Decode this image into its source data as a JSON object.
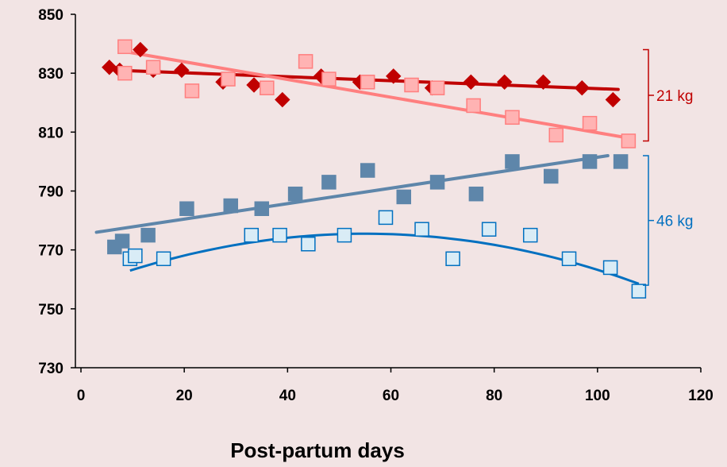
{
  "chart_data": {
    "type": "scatter",
    "title": "",
    "xlabel": "Post-partum days",
    "ylabel": "",
    "xlim": [
      0,
      120
    ],
    "ylim": [
      730,
      850
    ],
    "xticks": [
      0,
      20,
      40,
      60,
      80,
      100,
      120
    ],
    "yticks": [
      730,
      750,
      770,
      790,
      810,
      830,
      850
    ],
    "grid": false,
    "series": [
      {
        "marker": "diamond",
        "color": "#c00000",
        "fill": "#c00000",
        "points": [
          [
            5.5,
            832
          ],
          [
            7.5,
            831
          ],
          [
            11.5,
            838
          ],
          [
            14,
            831
          ],
          [
            19.5,
            831
          ],
          [
            27.5,
            827
          ],
          [
            33.5,
            826
          ],
          [
            39,
            821
          ],
          [
            46.5,
            829
          ],
          [
            54,
            827
          ],
          [
            60.5,
            829
          ],
          [
            68,
            825
          ],
          [
            75.5,
            827
          ],
          [
            82,
            827
          ],
          [
            89.5,
            827
          ],
          [
            97,
            825
          ],
          [
            103,
            821
          ]
        ],
        "trend": {
          "kind": "linear",
          "x": [
            7,
            104
          ],
          "y": [
            831,
            824.5
          ]
        }
      },
      {
        "marker": "square",
        "color": "#ff7f7f",
        "fill": "#ffb3b3",
        "points": [
          [
            8.5,
            839
          ],
          [
            8.5,
            830
          ],
          [
            14,
            832
          ],
          [
            21.5,
            824
          ],
          [
            28.5,
            828
          ],
          [
            36,
            825
          ],
          [
            43.5,
            834
          ],
          [
            48,
            828
          ],
          [
            55.5,
            827
          ],
          [
            64,
            826
          ],
          [
            69,
            825
          ],
          [
            76,
            819
          ],
          [
            83.5,
            815
          ],
          [
            92,
            809
          ],
          [
            98.5,
            813
          ],
          [
            106,
            807
          ]
        ],
        "trend": {
          "kind": "linear",
          "x": [
            8,
            106
          ],
          "y": [
            837.5,
            808
          ]
        }
      },
      {
        "marker": "square",
        "color": "#5e86aa",
        "fill": "#5e86aa",
        "points": [
          [
            6.5,
            771
          ],
          [
            8,
            773
          ],
          [
            13,
            775
          ],
          [
            20.5,
            784
          ],
          [
            29,
            785
          ],
          [
            35,
            784
          ],
          [
            41.5,
            789
          ],
          [
            48,
            793
          ],
          [
            55.5,
            797
          ],
          [
            62.5,
            788
          ],
          [
            69,
            793
          ],
          [
            76.5,
            789
          ],
          [
            83.5,
            800
          ],
          [
            91,
            795
          ],
          [
            98.5,
            800
          ],
          [
            104.5,
            800
          ]
        ],
        "trend": {
          "kind": "linear",
          "x": [
            3,
            102
          ],
          "y": [
            776,
            802
          ]
        }
      },
      {
        "marker": "square",
        "color": "#0070c0",
        "fill": "#d9ecf6",
        "points": [
          [
            9.5,
            767
          ],
          [
            10.5,
            768
          ],
          [
            16,
            767
          ],
          [
            33,
            775
          ],
          [
            38.5,
            775
          ],
          [
            44,
            772
          ],
          [
            51,
            775
          ],
          [
            59,
            781
          ],
          [
            66,
            777
          ],
          [
            72,
            767
          ],
          [
            79,
            777
          ],
          [
            87,
            775
          ],
          [
            94.5,
            767
          ],
          [
            102.5,
            764
          ],
          [
            108,
            756
          ]
        ],
        "trend": {
          "kind": "quadratic",
          "x": [
            9.5,
            108
          ],
          "peak_x": 55,
          "peak_y": 775.5,
          "end_y": 758.5
        }
      }
    ],
    "annotations": [
      {
        "text": "21 kg",
        "color": "#c00000",
        "y_range": [
          807,
          838
        ]
      },
      {
        "text": "46 kg",
        "color": "#0070c0",
        "y_range": [
          758,
          802
        ]
      }
    ]
  }
}
